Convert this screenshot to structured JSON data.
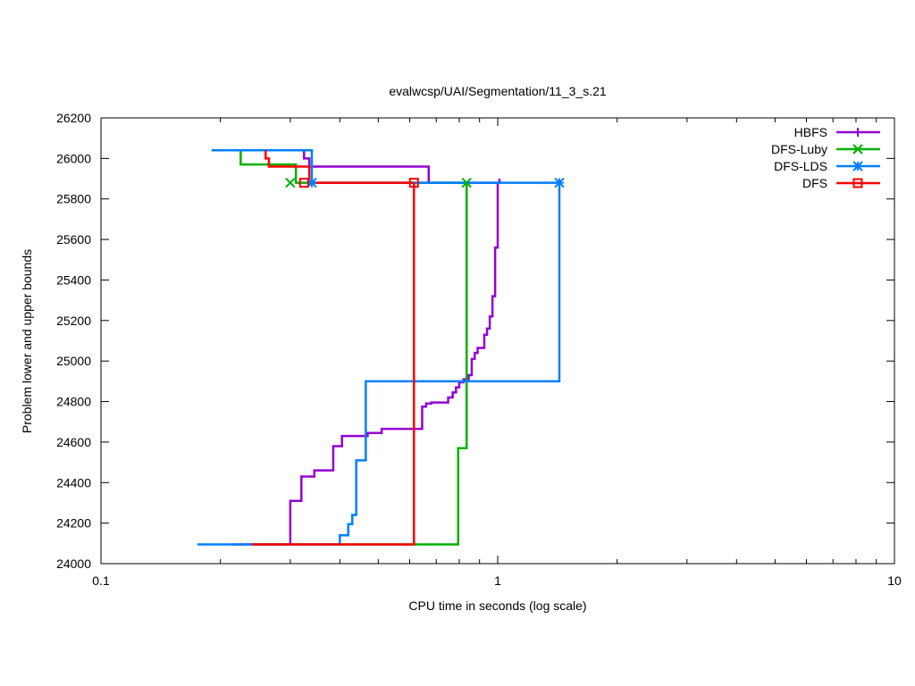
{
  "chart_data": {
    "type": "line",
    "title": "evalwcsp/UAI/Segmentation/11_3_s.21",
    "xlabel": "CPU time in seconds (log scale)",
    "ylabel": "Problem lower and upper bounds",
    "xscale": "log",
    "xlim": [
      0.1,
      10
    ],
    "ylim": [
      24000,
      26200
    ],
    "x_ticks": [
      {
        "value": 0.1,
        "label": "0.1"
      },
      {
        "value": 1,
        "label": "1"
      },
      {
        "value": 10,
        "label": "10"
      }
    ],
    "y_ticks": [
      24000,
      24200,
      24400,
      24600,
      24800,
      25000,
      25200,
      25400,
      25600,
      25800,
      26000,
      26200
    ],
    "grid": false,
    "legend_position": "top-right",
    "series": [
      {
        "name": "HBFS",
        "color": "#9400d3",
        "marker": "plus",
        "upper": [
          [
            0.325,
            26040
          ],
          [
            0.325,
            26000
          ],
          [
            0.335,
            26000
          ],
          [
            0.335,
            25960
          ],
          [
            0.67,
            25960
          ],
          [
            0.67,
            25880
          ],
          [
            1.01,
            25880
          ],
          [
            1.01,
            25900
          ]
        ],
        "lower": [
          [
            0.215,
            24095
          ],
          [
            0.3,
            24095
          ],
          [
            0.3,
            24310
          ],
          [
            0.32,
            24310
          ],
          [
            0.32,
            24430
          ],
          [
            0.345,
            24430
          ],
          [
            0.345,
            24460
          ],
          [
            0.385,
            24460
          ],
          [
            0.385,
            24580
          ],
          [
            0.405,
            24580
          ],
          [
            0.405,
            24630
          ],
          [
            0.47,
            24630
          ],
          [
            0.47,
            24645
          ],
          [
            0.51,
            24645
          ],
          [
            0.51,
            24665
          ],
          [
            0.645,
            24665
          ],
          [
            0.645,
            24775
          ],
          [
            0.66,
            24775
          ],
          [
            0.66,
            24790
          ],
          [
            0.68,
            24790
          ],
          [
            0.68,
            24795
          ],
          [
            0.75,
            24795
          ],
          [
            0.75,
            24820
          ],
          [
            0.77,
            24820
          ],
          [
            0.77,
            24845
          ],
          [
            0.785,
            24845
          ],
          [
            0.785,
            24870
          ],
          [
            0.8,
            24870
          ],
          [
            0.8,
            24895
          ],
          [
            0.82,
            24895
          ],
          [
            0.82,
            24910
          ],
          [
            0.845,
            24910
          ],
          [
            0.845,
            24930
          ],
          [
            0.86,
            24930
          ],
          [
            0.86,
            25010
          ],
          [
            0.875,
            25010
          ],
          [
            0.875,
            25040
          ],
          [
            0.89,
            25040
          ],
          [
            0.89,
            25065
          ],
          [
            0.925,
            25065
          ],
          [
            0.925,
            25130
          ],
          [
            0.94,
            25130
          ],
          [
            0.94,
            25160
          ],
          [
            0.955,
            25160
          ],
          [
            0.955,
            25220
          ],
          [
            0.97,
            25220
          ],
          [
            0.97,
            25320
          ],
          [
            0.985,
            25320
          ],
          [
            0.985,
            25560
          ],
          [
            1.0,
            25560
          ],
          [
            1.0,
            25880
          ]
        ]
      },
      {
        "name": "DFS-Luby",
        "color": "#00b000",
        "marker": "x",
        "upper": [
          [
            0.22,
            26040
          ],
          [
            0.225,
            26040
          ],
          [
            0.225,
            25970
          ],
          [
            0.31,
            25970
          ],
          [
            0.31,
            25880
          ],
          [
            0.835,
            25880
          ]
        ],
        "lower": [
          [
            0.24,
            24095
          ],
          [
            0.795,
            24095
          ],
          [
            0.795,
            24570
          ],
          [
            0.835,
            24570
          ],
          [
            0.835,
            25880
          ]
        ]
      },
      {
        "name": "DFS-LDS",
        "color": "#0080ff",
        "marker": "star",
        "upper": [
          [
            0.19,
            26040
          ],
          [
            0.34,
            26040
          ],
          [
            0.34,
            25880
          ],
          [
            1.43,
            25880
          ]
        ],
        "lower": [
          [
            0.175,
            24095
          ],
          [
            0.4,
            24095
          ],
          [
            0.4,
            24140
          ],
          [
            0.42,
            24140
          ],
          [
            0.42,
            24195
          ],
          [
            0.43,
            24195
          ],
          [
            0.43,
            24240
          ],
          [
            0.44,
            24240
          ],
          [
            0.44,
            24510
          ],
          [
            0.465,
            24510
          ],
          [
            0.465,
            24900
          ],
          [
            1.43,
            24900
          ],
          [
            1.43,
            25880
          ]
        ]
      },
      {
        "name": "DFS",
        "color": "#ff0000",
        "marker": "square",
        "upper": [
          [
            0.26,
            26040
          ],
          [
            0.26,
            26000
          ],
          [
            0.265,
            26000
          ],
          [
            0.265,
            25960
          ],
          [
            0.335,
            25960
          ],
          [
            0.335,
            25880
          ],
          [
            0.615,
            25880
          ]
        ],
        "lower": [
          [
            0.24,
            24095
          ],
          [
            0.615,
            24095
          ],
          [
            0.615,
            25880
          ]
        ]
      }
    ],
    "markers": [
      {
        "series": "DFS-Luby",
        "x": 0.3,
        "y": 25880
      },
      {
        "series": "DFS-Luby",
        "x": 0.835,
        "y": 25880
      },
      {
        "series": "DFS-LDS",
        "x": 0.34,
        "y": 25880
      },
      {
        "series": "DFS-LDS",
        "x": 1.43,
        "y": 25880
      },
      {
        "series": "DFS",
        "x": 0.325,
        "y": 25880
      },
      {
        "series": "DFS",
        "x": 0.615,
        "y": 25880
      }
    ]
  }
}
